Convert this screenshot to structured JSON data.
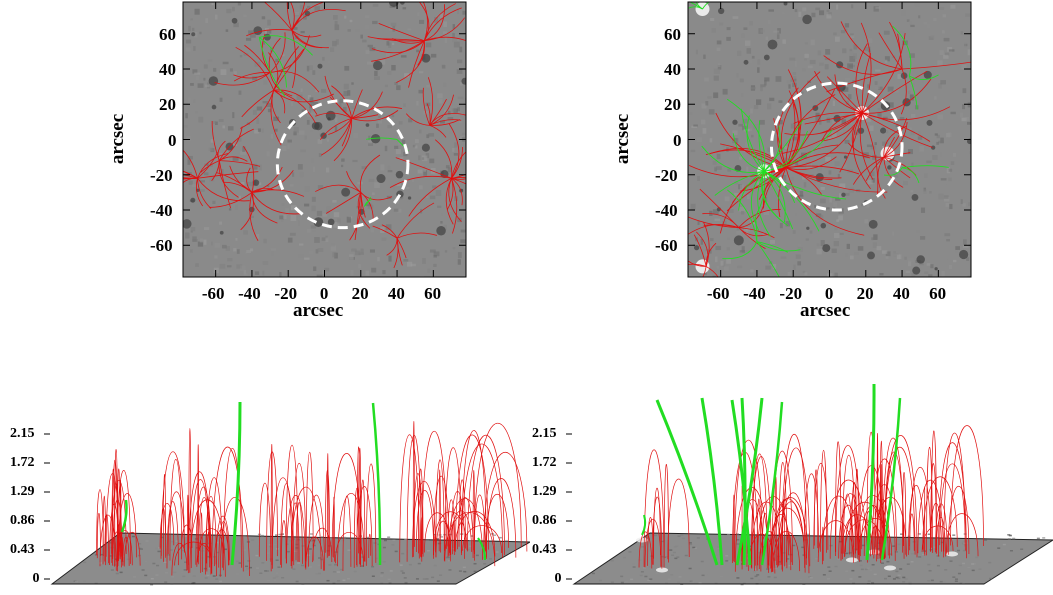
{
  "figure": {
    "panels_2d": [
      {
        "id": "top-left",
        "xlabel": "arcsec",
        "ylabel": "arcsec",
        "xticks": [
          "-60",
          "-40",
          "-20",
          "0",
          "20",
          "40",
          "60"
        ],
        "yticks": [
          "60",
          "40",
          "20",
          "0",
          "-20",
          "-40",
          "-60"
        ],
        "xtick_values": [
          -60,
          -40,
          -20,
          0,
          20,
          40,
          60
        ],
        "ytick_values": [
          60,
          40,
          20,
          0,
          -20,
          -40,
          -60
        ],
        "xlim": [
          -78,
          78
        ],
        "ylim": [
          -78,
          78
        ],
        "circle": {
          "cx": 10,
          "cy": -14,
          "r": 36
        },
        "line_colors": {
          "closed": "#e01010",
          "open": "#22dd22"
        },
        "dashed_circle_color": "#ffffff"
      },
      {
        "id": "top-right",
        "xlabel": "arcsec",
        "ylabel": "arcsec",
        "xticks": [
          "-60",
          "-40",
          "-20",
          "0",
          "20",
          "40",
          "60"
        ],
        "yticks": [
          "60",
          "40",
          "20",
          "0",
          "-20",
          "-40",
          "-60"
        ],
        "xtick_values": [
          -60,
          -40,
          -20,
          0,
          20,
          40,
          60
        ],
        "ytick_values": [
          60,
          40,
          20,
          0,
          -20,
          -40,
          -60
        ],
        "xlim": [
          -78,
          78
        ],
        "ylim": [
          -78,
          78
        ],
        "circle": {
          "cx": 4,
          "cy": -4,
          "r": 36
        },
        "line_colors": {
          "closed": "#e01010",
          "open": "#22dd22"
        },
        "dashed_circle_color": "#ffffff"
      }
    ],
    "panels_3d": [
      {
        "id": "bottom-left",
        "zticks": [
          "2.15",
          "1.72",
          "1.29",
          "0.86",
          "0.43",
          "0"
        ],
        "ztick_values": [
          2.15,
          1.72,
          1.29,
          0.86,
          0.43,
          0
        ]
      },
      {
        "id": "bottom-right",
        "zticks": [
          "2.15",
          "1.72",
          "1.29",
          "0.86",
          "0.43",
          "0"
        ],
        "ztick_values": [
          2.15,
          1.72,
          1.29,
          0.86,
          0.43,
          0
        ]
      }
    ]
  }
}
